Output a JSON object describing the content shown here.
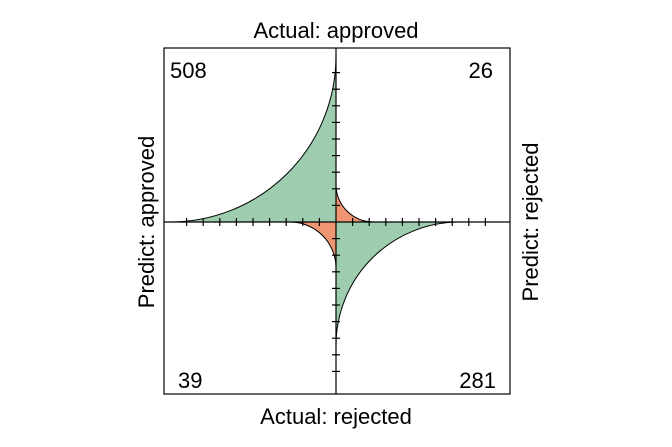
{
  "chart_data": {
    "type": "fourfold",
    "labels": {
      "top": "Actual: approved",
      "bottom": "Actual: rejected",
      "left": "Predict: approved",
      "right": "Predict: rejected"
    },
    "cells": [
      {
        "name": "predict-approved-actual-approved",
        "quadrant": "top-left",
        "value": 508,
        "correct": true
      },
      {
        "name": "predict-rejected-actual-approved",
        "quadrant": "top-right",
        "value": 26,
        "correct": false
      },
      {
        "name": "predict-approved-actual-rejected",
        "quadrant": "bottom-left",
        "value": 39,
        "correct": false
      },
      {
        "name": "predict-rejected-actual-rejected",
        "quadrant": "bottom-right",
        "value": 281,
        "correct": true
      }
    ],
    "colors": {
      "correct": "#9dcdae",
      "incorrect": "#ef9572"
    }
  }
}
